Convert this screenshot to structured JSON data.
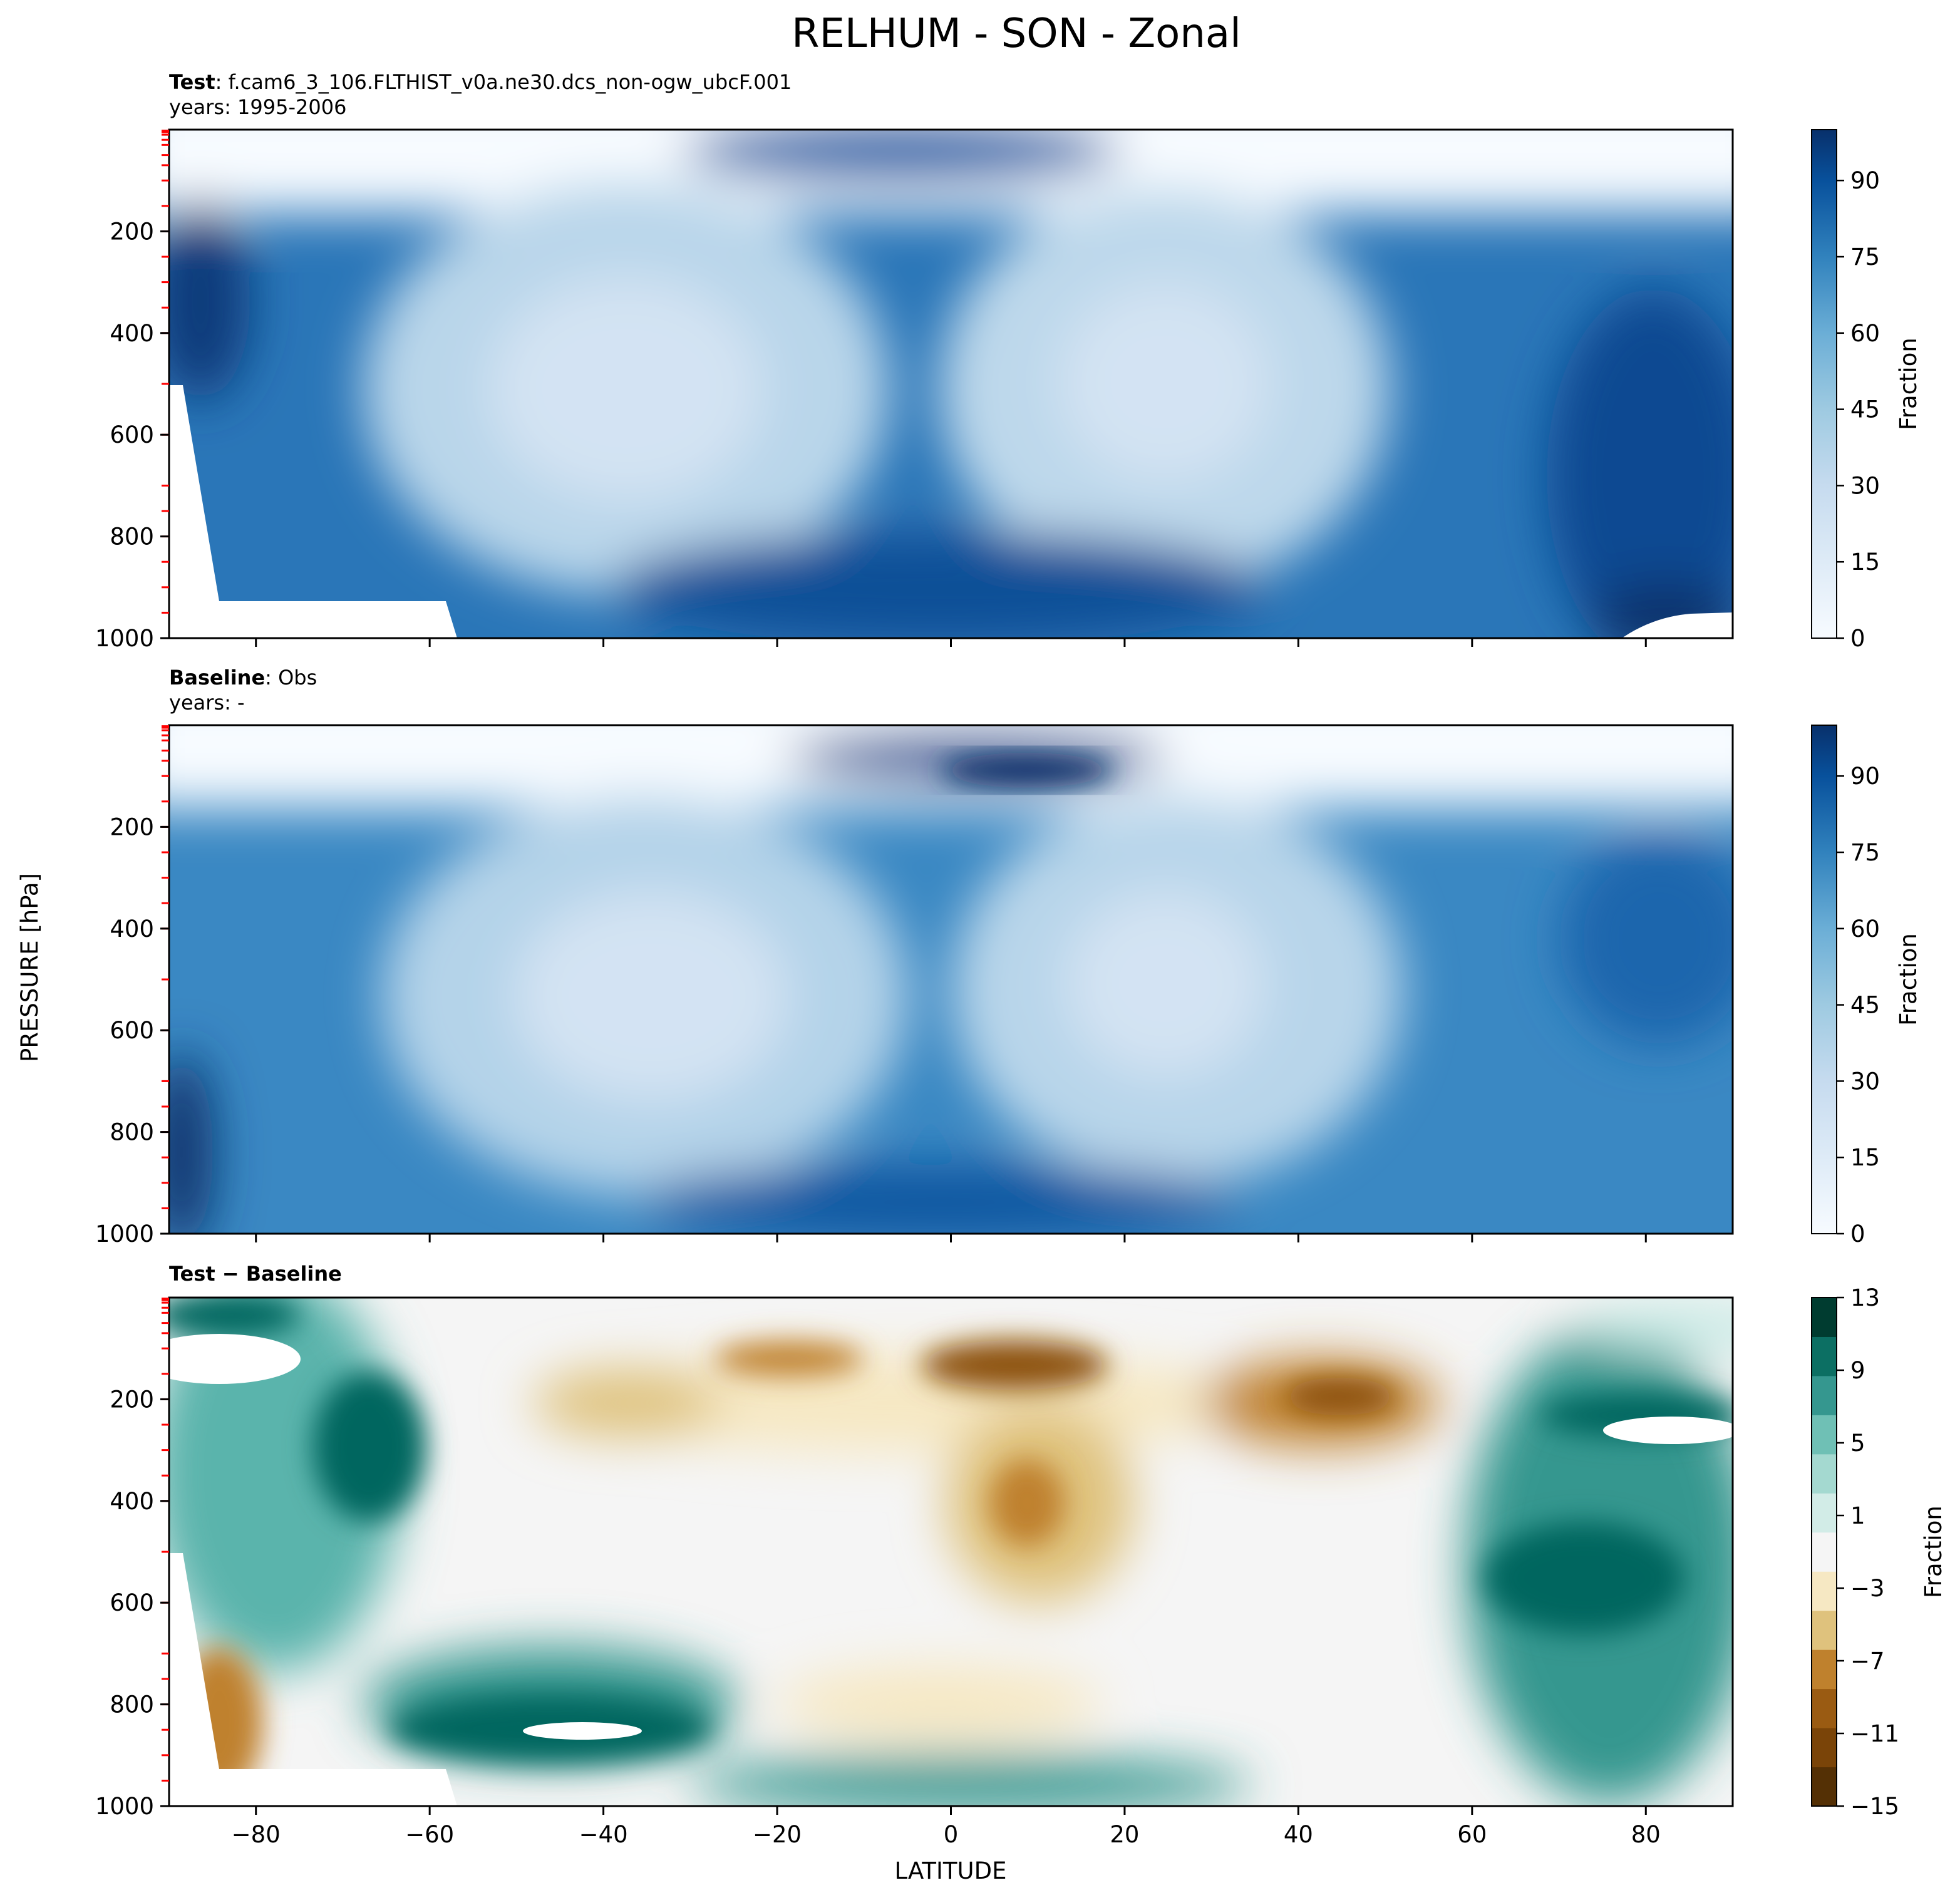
{
  "figure": {
    "title": "RELHUM - SON - Zonal",
    "ylabel": "PRESSURE [hPa]",
    "xlabel": "LATITUDE"
  },
  "chart_data": [
    {
      "type": "contour",
      "panel": "test",
      "title_bold": "Test",
      "title_sep": ": ",
      "title_rest": "f.cam6_3_106.FLTHIST_v0a.ne30.dcs_non-ogw_ubcF.001",
      "subtitle": "years: 1995-2006",
      "xlim": [
        -90,
        90
      ],
      "ylim": [
        1000,
        0
      ],
      "yticks": [
        200,
        400,
        600,
        800,
        1000
      ],
      "xticks": [
        -80,
        -60,
        -40,
        -20,
        0,
        20,
        40,
        60,
        80
      ],
      "colorbar": {
        "label": "Fraction",
        "colormap": "Blues",
        "range": [
          0,
          100
        ],
        "ticks": [
          0,
          15,
          30,
          45,
          60,
          75,
          90
        ]
      },
      "features": [
        {
          "lat": -20,
          "p": 470,
          "value": 20
        },
        {
          "lat": 25,
          "p": 470,
          "value": 25
        },
        {
          "lat": 5,
          "p": 110,
          "value": 85
        },
        {
          "lat": 5,
          "p": 950,
          "value": 90
        },
        {
          "lat": -88,
          "p": 300,
          "value": 90
        },
        {
          "lat": 85,
          "p": 500,
          "value": 85
        }
      ],
      "masked": [
        {
          "lat_from": -90,
          "lat_to": -57,
          "p_from": 930,
          "p_to": 1000
        },
        {
          "lat_from": -90,
          "lat_to": -84,
          "p_from": 500,
          "p_to": 930
        },
        {
          "lat_from": 78,
          "lat_to": 90,
          "p_from": 945,
          "p_to": 1000
        }
      ]
    },
    {
      "type": "contour",
      "panel": "baseline",
      "title_bold": "Baseline",
      "title_sep": ": ",
      "title_rest": "Obs",
      "subtitle": "years: -",
      "xlim": [
        -90,
        90
      ],
      "ylim": [
        1000,
        0
      ],
      "yticks": [
        200,
        400,
        600,
        800,
        1000
      ],
      "xticks": [
        -80,
        -60,
        -40,
        -20,
        0,
        20,
        40,
        60,
        80
      ],
      "colorbar": {
        "label": "Fraction",
        "colormap": "Blues",
        "range": [
          0,
          100
        ],
        "ticks": [
          0,
          15,
          30,
          45,
          60,
          75,
          90
        ]
      },
      "features": [
        {
          "lat": -20,
          "p": 480,
          "value": 18
        },
        {
          "lat": 25,
          "p": 480,
          "value": 22
        },
        {
          "lat": 10,
          "p": 110,
          "value": 95
        },
        {
          "lat": -88,
          "p": 800,
          "value": 95
        },
        {
          "lat": 5,
          "p": 950,
          "value": 90
        }
      ],
      "masked": []
    },
    {
      "type": "contour",
      "panel": "difference",
      "title_bold": "Test − Baseline",
      "xlim": [
        -90,
        90
      ],
      "ylim": [
        1000,
        0
      ],
      "yticks": [
        200,
        400,
        600,
        800,
        1000
      ],
      "xticks": [
        -80,
        -60,
        -40,
        -20,
        0,
        20,
        40,
        60,
        80
      ],
      "colorbar": {
        "label": "Fraction",
        "colormap": "BrBG",
        "range": [
          -15,
          13
        ],
        "ticks": [
          13,
          9,
          5,
          1,
          -3,
          -7,
          -11,
          -15
        ],
        "tick_labels": [
          "13",
          "9",
          "5",
          "1",
          "−3",
          "−7",
          "−11",
          "−15"
        ]
      },
      "features": [
        {
          "lat": 8,
          "p": 110,
          "value": -13
        },
        {
          "lat": 42,
          "p": 200,
          "value": -12
        },
        {
          "lat": -35,
          "p": 200,
          "value": -10
        },
        {
          "lat": 8,
          "p": 330,
          "value": -8
        },
        {
          "lat": -83,
          "p": 850,
          "value": -10
        },
        {
          "lat": -45,
          "p": 850,
          "value": 13
        },
        {
          "lat": -70,
          "p": 250,
          "value": 12
        },
        {
          "lat": 80,
          "p": 520,
          "value": 12
        }
      ],
      "masked": [
        {
          "lat_from": -90,
          "lat_to": -57,
          "p_from": 930,
          "p_to": 1000
        },
        {
          "lat_from": -90,
          "lat_to": -84,
          "p_from": 500,
          "p_to": 930
        }
      ]
    }
  ]
}
